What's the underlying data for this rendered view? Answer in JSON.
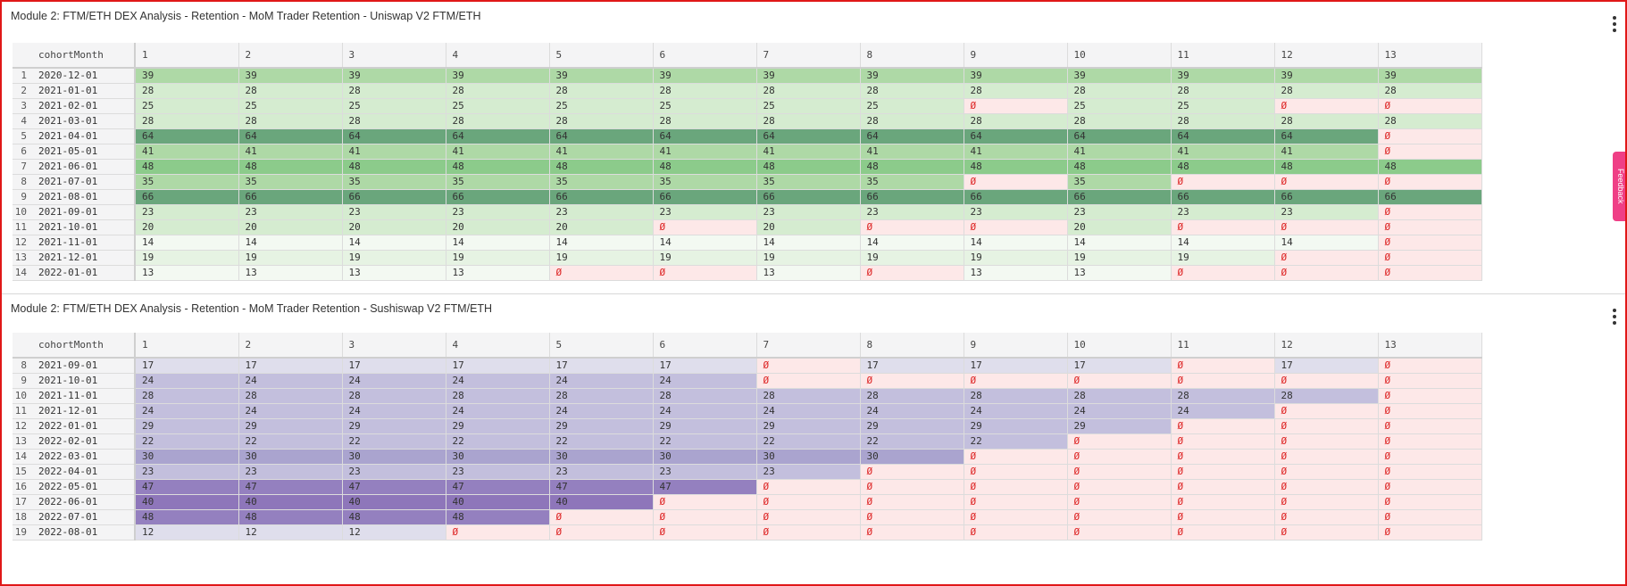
{
  "colors": {
    "frame_border": "#e01818",
    "zero_bg": "#fde8e8",
    "zero_text": "#dd2222",
    "green_scale": [
      "#f3f9f2",
      "#e6f3e3",
      "#d5ecd0",
      "#c3e4bc",
      "#aed9a6",
      "#8ccb8b",
      "#6aa67c"
    ],
    "purple_scale": [
      "#dfdeec",
      "#c9c6e0",
      "#c3bfdd",
      "#aaa4cf",
      "#9480bf",
      "#8e76ba"
    ],
    "feedback_tab": "#ef3f86"
  },
  "panels": [
    {
      "title": "Module 2: FTM/ETH DEX Analysis - Retention - MoM Trader Retention - Uniswap V2 FTM/ETH",
      "menu_icon": "kebab-vertical-icon",
      "palette": "green",
      "columns": [
        "cohortMonth",
        "1",
        "2",
        "3",
        "4",
        "5",
        "6",
        "7",
        "8",
        "9",
        "10",
        "11",
        "12",
        "13"
      ],
      "rows": [
        {
          "n": "1",
          "month": "2020-12-01",
          "values": [
            39,
            39,
            39,
            39,
            39,
            39,
            39,
            39,
            39,
            39,
            39,
            39,
            39
          ]
        },
        {
          "n": "2",
          "month": "2021-01-01",
          "values": [
            28,
            28,
            28,
            28,
            28,
            28,
            28,
            28,
            28,
            28,
            28,
            28,
            28
          ]
        },
        {
          "n": "3",
          "month": "2021-02-01",
          "values": [
            25,
            25,
            25,
            25,
            25,
            25,
            25,
            25,
            0,
            25,
            25,
            0,
            0
          ]
        },
        {
          "n": "4",
          "month": "2021-03-01",
          "values": [
            28,
            28,
            28,
            28,
            28,
            28,
            28,
            28,
            28,
            28,
            28,
            28,
            28
          ]
        },
        {
          "n": "5",
          "month": "2021-04-01",
          "values": [
            64,
            64,
            64,
            64,
            64,
            64,
            64,
            64,
            64,
            64,
            64,
            64,
            0
          ]
        },
        {
          "n": "6",
          "month": "2021-05-01",
          "values": [
            41,
            41,
            41,
            41,
            41,
            41,
            41,
            41,
            41,
            41,
            41,
            41,
            0
          ]
        },
        {
          "n": "7",
          "month": "2021-06-01",
          "values": [
            48,
            48,
            48,
            48,
            48,
            48,
            48,
            48,
            48,
            48,
            48,
            48,
            48
          ]
        },
        {
          "n": "8",
          "month": "2021-07-01",
          "values": [
            35,
            35,
            35,
            35,
            35,
            35,
            35,
            35,
            0,
            35,
            0,
            0,
            0
          ]
        },
        {
          "n": "9",
          "month": "2021-08-01",
          "values": [
            66,
            66,
            66,
            66,
            66,
            66,
            66,
            66,
            66,
            66,
            66,
            66,
            66
          ]
        },
        {
          "n": "10",
          "month": "2021-09-01",
          "values": [
            23,
            23,
            23,
            23,
            23,
            23,
            23,
            23,
            23,
            23,
            23,
            23,
            0
          ]
        },
        {
          "n": "11",
          "month": "2021-10-01",
          "values": [
            20,
            20,
            20,
            20,
            20,
            0,
            20,
            0,
            0,
            20,
            0,
            0,
            0
          ]
        },
        {
          "n": "12",
          "month": "2021-11-01",
          "values": [
            14,
            14,
            14,
            14,
            14,
            14,
            14,
            14,
            14,
            14,
            14,
            14,
            0
          ]
        },
        {
          "n": "13",
          "month": "2021-12-01",
          "values": [
            19,
            19,
            19,
            19,
            19,
            19,
            19,
            19,
            19,
            19,
            19,
            0,
            0
          ]
        },
        {
          "n": "14",
          "month": "2022-01-01",
          "values": [
            13,
            13,
            13,
            13,
            0,
            0,
            13,
            0,
            13,
            13,
            0,
            0,
            0
          ]
        }
      ]
    },
    {
      "title": "Module 2: FTM/ETH DEX Analysis - Retention - MoM Trader Retention - Sushiswap V2 FTM/ETH",
      "menu_icon": "kebab-vertical-icon",
      "palette": "purple",
      "columns": [
        "cohortMonth",
        "1",
        "2",
        "3",
        "4",
        "5",
        "6",
        "7",
        "8",
        "9",
        "10",
        "11",
        "12",
        "13"
      ],
      "rows": [
        {
          "n": "8",
          "month": "2021-09-01",
          "values": [
            17,
            17,
            17,
            17,
            17,
            17,
            0,
            17,
            17,
            17,
            0,
            17,
            0
          ]
        },
        {
          "n": "9",
          "month": "2021-10-01",
          "values": [
            24,
            24,
            24,
            24,
            24,
            24,
            0,
            0,
            0,
            0,
            0,
            0,
            0
          ]
        },
        {
          "n": "10",
          "month": "2021-11-01",
          "values": [
            28,
            28,
            28,
            28,
            28,
            28,
            28,
            28,
            28,
            28,
            28,
            28,
            0
          ]
        },
        {
          "n": "11",
          "month": "2021-12-01",
          "values": [
            24,
            24,
            24,
            24,
            24,
            24,
            24,
            24,
            24,
            24,
            24,
            0,
            0
          ]
        },
        {
          "n": "12",
          "month": "2022-01-01",
          "values": [
            29,
            29,
            29,
            29,
            29,
            29,
            29,
            29,
            29,
            29,
            0,
            0,
            0
          ]
        },
        {
          "n": "13",
          "month": "2022-02-01",
          "values": [
            22,
            22,
            22,
            22,
            22,
            22,
            22,
            22,
            22,
            0,
            0,
            0,
            0
          ]
        },
        {
          "n": "14",
          "month": "2022-03-01",
          "values": [
            30,
            30,
            30,
            30,
            30,
            30,
            30,
            30,
            0,
            0,
            0,
            0,
            0
          ]
        },
        {
          "n": "15",
          "month": "2022-04-01",
          "values": [
            23,
            23,
            23,
            23,
            23,
            23,
            23,
            0,
            0,
            0,
            0,
            0,
            0
          ]
        },
        {
          "n": "16",
          "month": "2022-05-01",
          "values": [
            47,
            47,
            47,
            47,
            47,
            47,
            0,
            0,
            0,
            0,
            0,
            0,
            0
          ]
        },
        {
          "n": "17",
          "month": "2022-06-01",
          "values": [
            40,
            40,
            40,
            40,
            40,
            0,
            0,
            0,
            0,
            0,
            0,
            0,
            0
          ]
        },
        {
          "n": "18",
          "month": "2022-07-01",
          "values": [
            48,
            48,
            48,
            48,
            0,
            0,
            0,
            0,
            0,
            0,
            0,
            0,
            0
          ]
        },
        {
          "n": "19",
          "month": "2022-08-01",
          "values": [
            12,
            12,
            12,
            0,
            0,
            0,
            0,
            0,
            0,
            0,
            0,
            0,
            0
          ]
        }
      ]
    }
  ],
  "zero_glyph": "Ø",
  "feedback_label": "Feedback"
}
